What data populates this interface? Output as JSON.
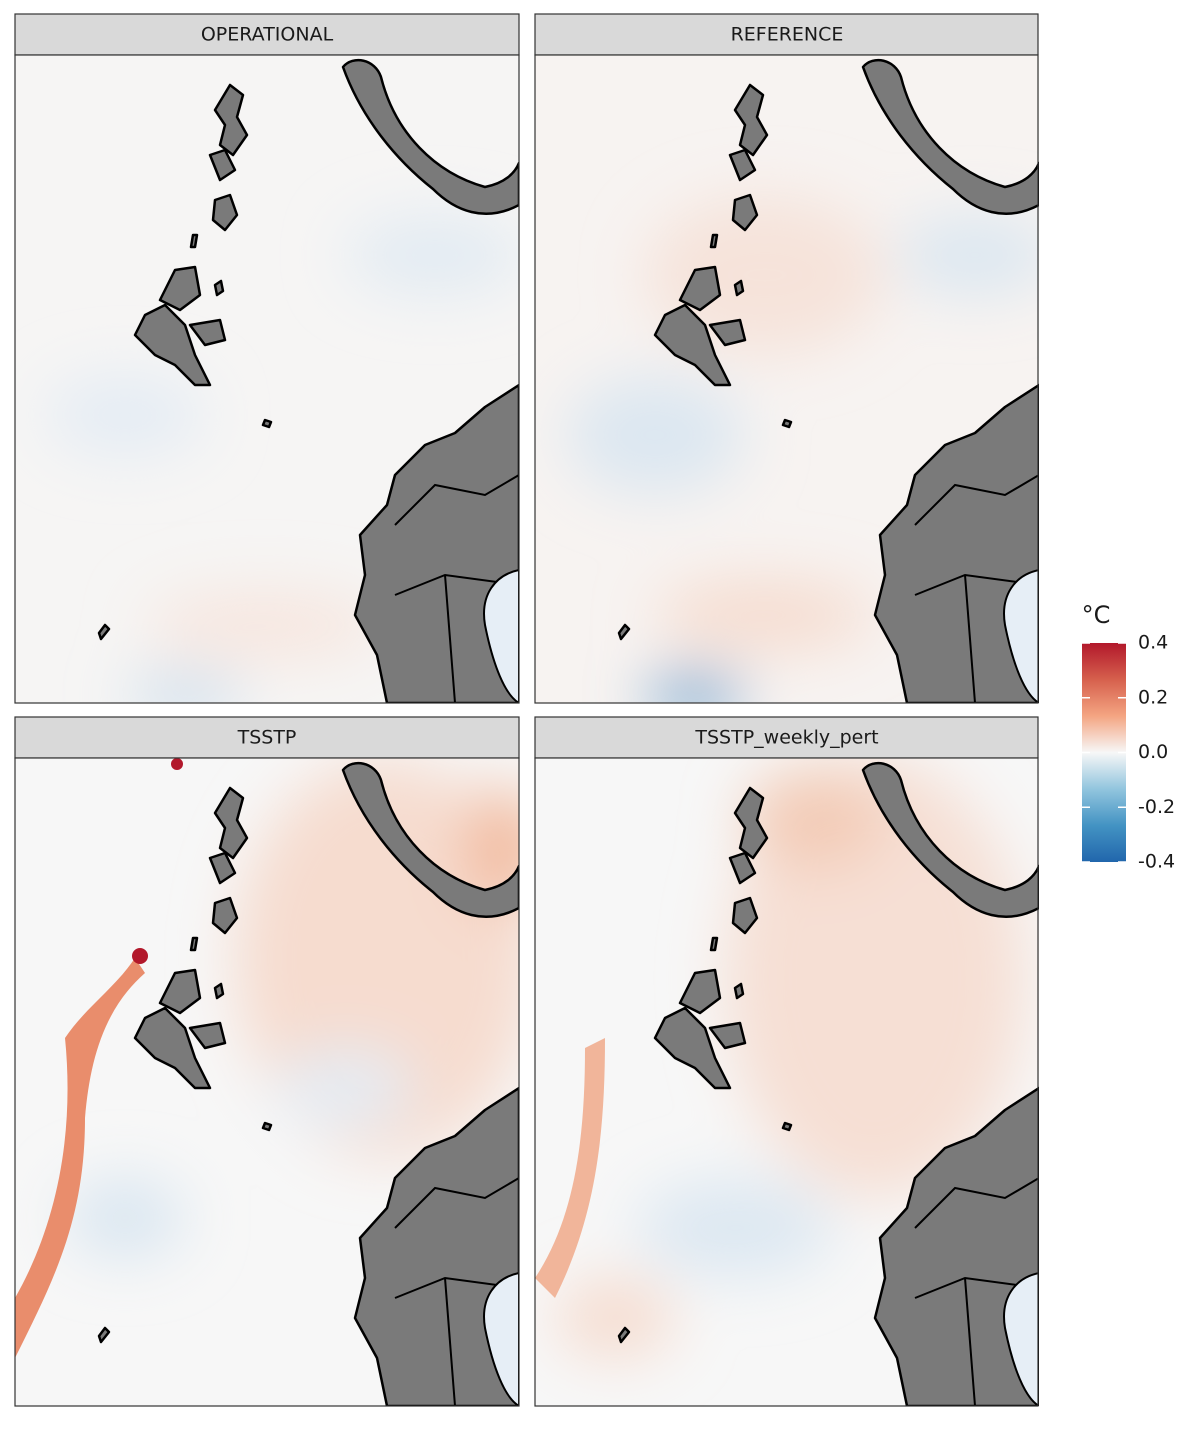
{
  "panels": [
    {
      "title": "OPERATIONAL"
    },
    {
      "title": "REFERENCE"
    },
    {
      "title": "TSSTP"
    },
    {
      "title": "TSSTP_weekly_pert"
    }
  ],
  "legend": {
    "title": "°C",
    "clim": [
      -0.4,
      0.4
    ],
    "ticks": [
      0.4,
      0.2,
      {
        "value": 0,
        "label": "0.0"
      },
      -0.2,
      -0.4
    ],
    "colors": [
      "#2166ac",
      "#4393c3",
      "#92c5de",
      "#f7f7f7",
      "#f4a582",
      "#d6604d",
      "#b2182b"
    ]
  }
}
